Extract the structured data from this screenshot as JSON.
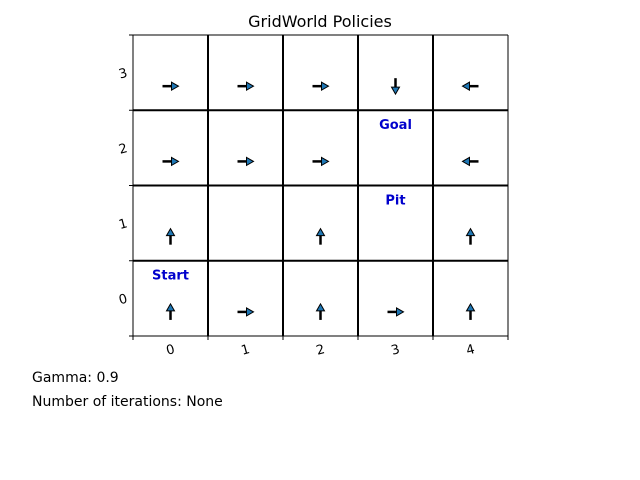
{
  "chart_data": {
    "type": "grid",
    "title": "GridWorld Policies",
    "x_ticks": [
      "0",
      "1",
      "2",
      "3",
      "4"
    ],
    "y_ticks": [
      "0",
      "1",
      "2",
      "3"
    ],
    "cols": 5,
    "rows": 4,
    "policies": [
      {
        "x": 0,
        "y": 3,
        "dir": "right"
      },
      {
        "x": 1,
        "y": 3,
        "dir": "right"
      },
      {
        "x": 2,
        "y": 3,
        "dir": "right"
      },
      {
        "x": 3,
        "y": 3,
        "dir": "down"
      },
      {
        "x": 4,
        "y": 3,
        "dir": "left"
      },
      {
        "x": 0,
        "y": 2,
        "dir": "right"
      },
      {
        "x": 1,
        "y": 2,
        "dir": "right"
      },
      {
        "x": 2,
        "y": 2,
        "dir": "right"
      },
      {
        "x": 4,
        "y": 2,
        "dir": "left"
      },
      {
        "x": 0,
        "y": 1,
        "dir": "up"
      },
      {
        "x": 2,
        "y": 1,
        "dir": "up"
      },
      {
        "x": 4,
        "y": 1,
        "dir": "up"
      },
      {
        "x": 0,
        "y": 0,
        "dir": "up"
      },
      {
        "x": 1,
        "y": 0,
        "dir": "right"
      },
      {
        "x": 2,
        "y": 0,
        "dir": "up"
      },
      {
        "x": 3,
        "y": 0,
        "dir": "right"
      },
      {
        "x": 4,
        "y": 0,
        "dir": "up"
      }
    ],
    "labels": [
      {
        "x": 3,
        "y": 2,
        "text": "Goal"
      },
      {
        "x": 3,
        "y": 1,
        "text": "Pit"
      },
      {
        "x": 0,
        "y": 0,
        "text": "Start"
      }
    ],
    "colors": {
      "arrow_fill": "#1f77b4",
      "label": "#0000cc",
      "grid": "#000000"
    }
  },
  "info": {
    "gamma": "Gamma: 0.9",
    "iterations": "Number of iterations: None"
  }
}
